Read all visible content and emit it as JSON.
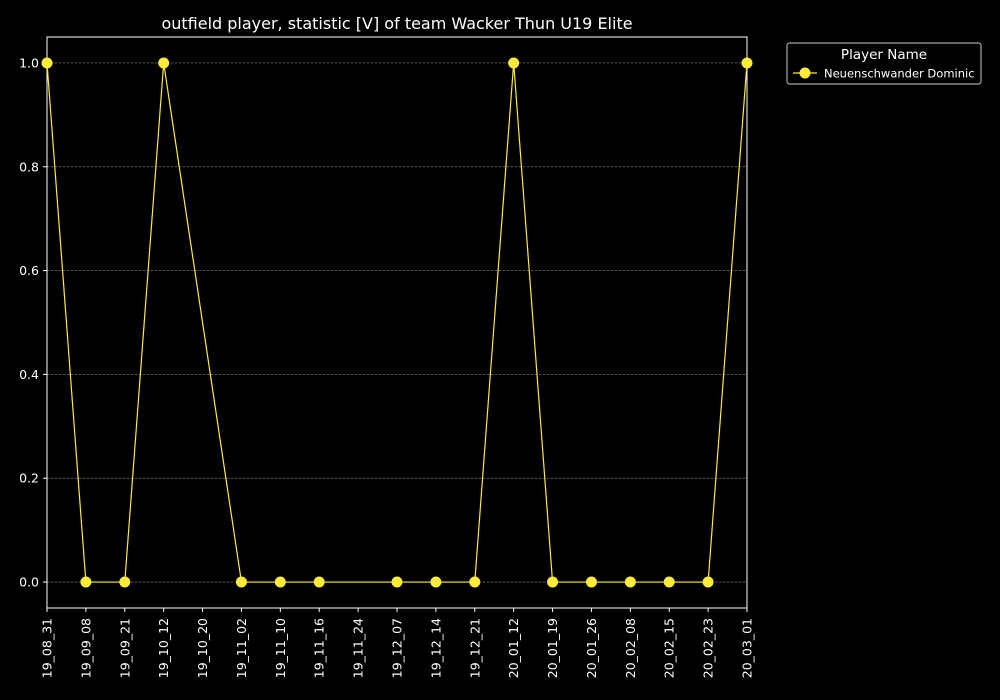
{
  "chart_data": {
    "type": "line",
    "title": "outfield player, statistic [V] of team Wacker Thun U19 Elite",
    "xlabel": "",
    "ylabel": "",
    "x": [
      "19_08_31",
      "19_09_08",
      "19_09_21",
      "19_10_12",
      "19_10_20",
      "19_11_02",
      "19_11_10",
      "19_11_16",
      "19_11_24",
      "19_12_07",
      "19_12_14",
      "19_12_21",
      "20_01_12",
      "20_01_19",
      "20_01_26",
      "20_02_08",
      "20_02_15",
      "20_02_23",
      "20_03_01"
    ],
    "ylim": [
      -0.05,
      1.05
    ],
    "yticks": [
      "0.0",
      "0.2",
      "0.4",
      "0.6",
      "0.8",
      "1.0"
    ],
    "grid": true,
    "legend": {
      "title": "Player Name",
      "placement": "outside-top-right"
    },
    "series": [
      {
        "name": "Neuenschwander Dominic",
        "color": "#ffeb3b",
        "values": [
          1,
          0,
          0,
          1,
          null,
          0,
          0,
          0,
          null,
          0,
          0,
          0,
          1,
          0,
          0,
          0,
          0,
          0,
          1
        ]
      }
    ]
  }
}
